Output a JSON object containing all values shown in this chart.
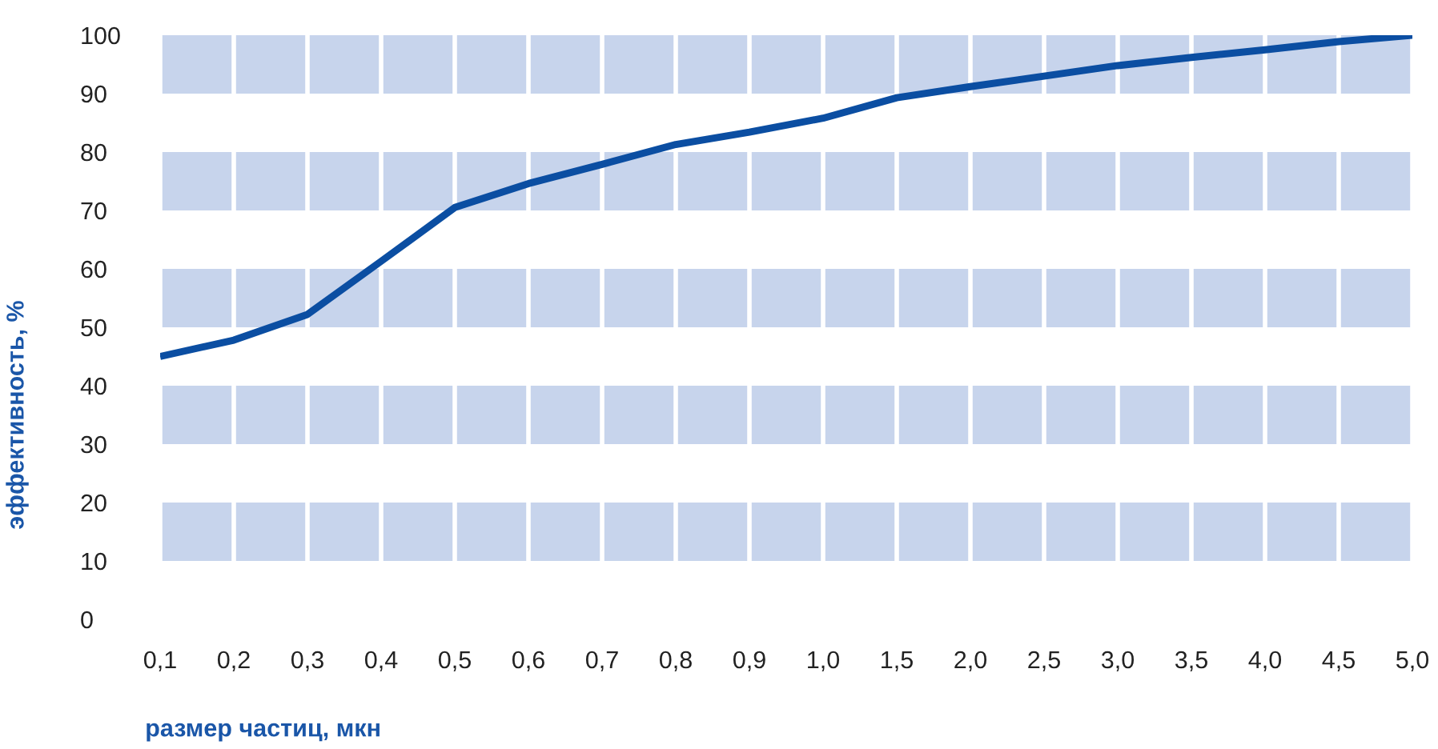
{
  "chart_data": {
    "type": "line",
    "xlabel": "размер частиц, мкн",
    "ylabel": "эффективность, %",
    "categories": [
      "0,1",
      "0,2",
      "0,3",
      "0,4",
      "0,5",
      "0,6",
      "0,7",
      "0,8",
      "0,9",
      "1,0",
      "1,5",
      "2,0",
      "2,5",
      "3,0",
      "3,5",
      "4,0",
      "4,5",
      "5,0"
    ],
    "series": [
      {
        "color": "#0b4ea2",
        "values": [
          45,
          47.8,
          52.2,
          61.3,
          70.5,
          74.6,
          77.9,
          81.3,
          83.4,
          85.8,
          89.3,
          91.2,
          93.0,
          94.8,
          96.2,
          97.5,
          98.9,
          100
        ]
      }
    ],
    "ylim": [
      0,
      100
    ],
    "yticks": [
      0,
      10,
      20,
      30,
      40,
      50,
      60,
      70,
      80,
      90,
      100
    ],
    "bands": [
      {
        "axis": "y",
        "from": 10,
        "to": 20,
        "color": "#c7d4ec"
      },
      {
        "axis": "y",
        "from": 30,
        "to": 40,
        "color": "#c7d4ec"
      },
      {
        "axis": "y",
        "from": 50,
        "to": 60,
        "color": "#c7d4ec"
      },
      {
        "axis": "y",
        "from": 70,
        "to": 80,
        "color": "#c7d4ec"
      },
      {
        "axis": "y",
        "from": 90,
        "to": 100,
        "color": "#c7d4ec"
      }
    ],
    "grid": "x",
    "legend": false,
    "marker": "none",
    "line_style": "solid"
  }
}
